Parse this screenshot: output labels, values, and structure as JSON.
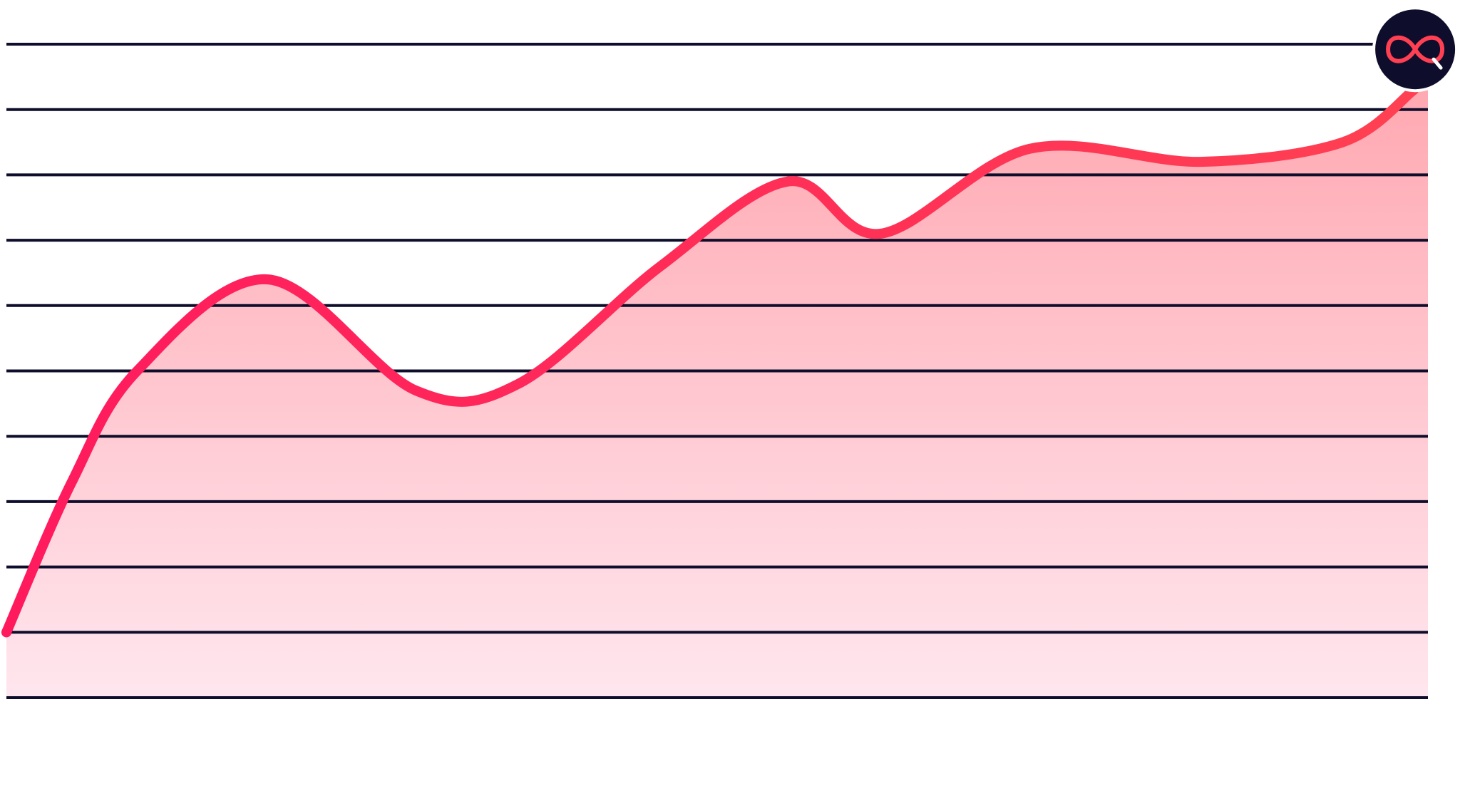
{
  "chart_data": {
    "type": "area",
    "title": "",
    "xlabel": "",
    "ylabel": "",
    "grid": true,
    "gridlines": 11,
    "xlim": [
      0,
      100
    ],
    "ylim": [
      0,
      10
    ],
    "x": [
      0,
      4.6,
      9.2,
      18.4,
      28.8,
      36,
      46,
      55,
      61.5,
      72,
      84,
      94,
      99
    ],
    "series": [
      {
        "values": [
          1,
          3.3,
          5,
          6.4,
          4.7,
          4.8,
          6.6,
          7.9,
          7.1,
          8.4,
          8.2,
          8.5,
          9.3
        ]
      }
    ],
    "colors": {
      "line_start": "#FF1A5E",
      "line_end": "#FF4052",
      "fill_top": "#FFA9B2",
      "fill_bottom": "#FFE6EE",
      "grid": "#0E0E2C",
      "badge_bg": "#0E0E2C",
      "badge_icon": "#FF4052"
    },
    "endpoint_icon": "infinity-search-logo-icon"
  }
}
